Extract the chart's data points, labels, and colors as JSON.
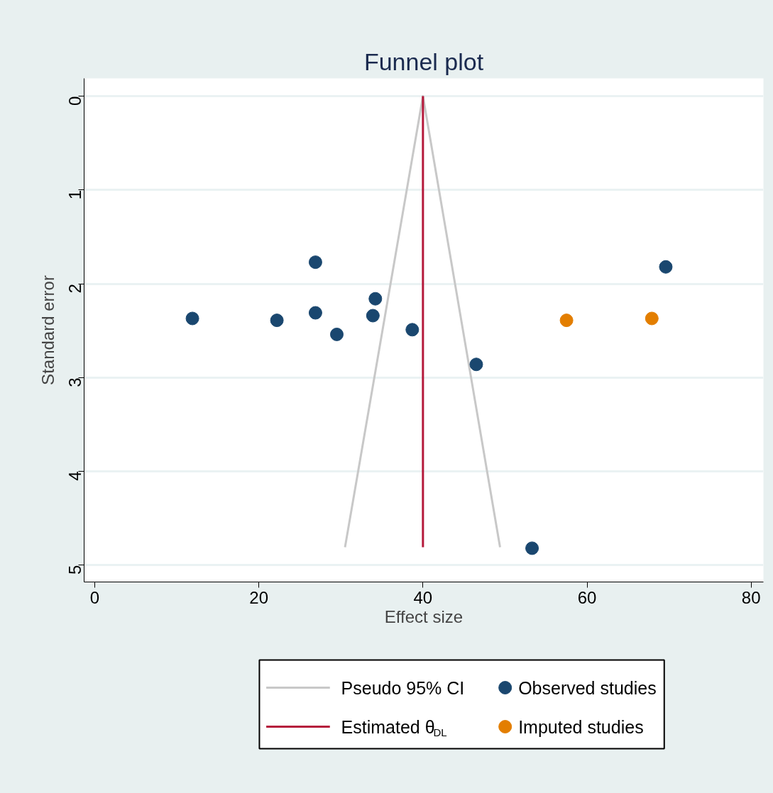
{
  "chart_data": {
    "type": "scatter",
    "title": "Funnel plot",
    "xlabel": "Effect size",
    "ylabel": "Standard error",
    "xlim": [
      -1.3,
      81.5
    ],
    "xticks": [
      0,
      20,
      40,
      60,
      80
    ],
    "ylim": [
      5.18,
      -0.19
    ],
    "yticks": [
      0,
      1,
      2,
      3,
      4,
      5
    ],
    "grid": "y",
    "legend": "bottom",
    "marker": "circle",
    "series": [
      {
        "name": "Pseudo 95% CI",
        "type": "line",
        "marker": "none",
        "color": "#c8c8c8",
        "x": [
          30.5,
          40,
          49.4
        ],
        "values": [
          4.81,
          0,
          4.81
        ]
      },
      {
        "name": "Estimated θ$_{DL}$",
        "type": "line",
        "marker": "none",
        "color": "#b5193b",
        "x": [
          40,
          40
        ],
        "values": [
          0,
          4.81
        ]
      },
      {
        "name": "Observed studies",
        "color": "#1a476f",
        "x": [
          11.9,
          22.2,
          26.9,
          26.9,
          29.5,
          34.2,
          33.9,
          38.7,
          46.5,
          53.3,
          69.6
        ],
        "values": [
          2.37,
          2.39,
          1.77,
          2.31,
          2.54,
          2.16,
          2.34,
          2.49,
          2.86,
          4.82,
          1.82
        ]
      },
      {
        "name": "Imputed studies",
        "color": "#e37e00",
        "x": [
          57.5,
          67.9
        ],
        "values": [
          2.39,
          2.37
        ]
      }
    ]
  }
}
